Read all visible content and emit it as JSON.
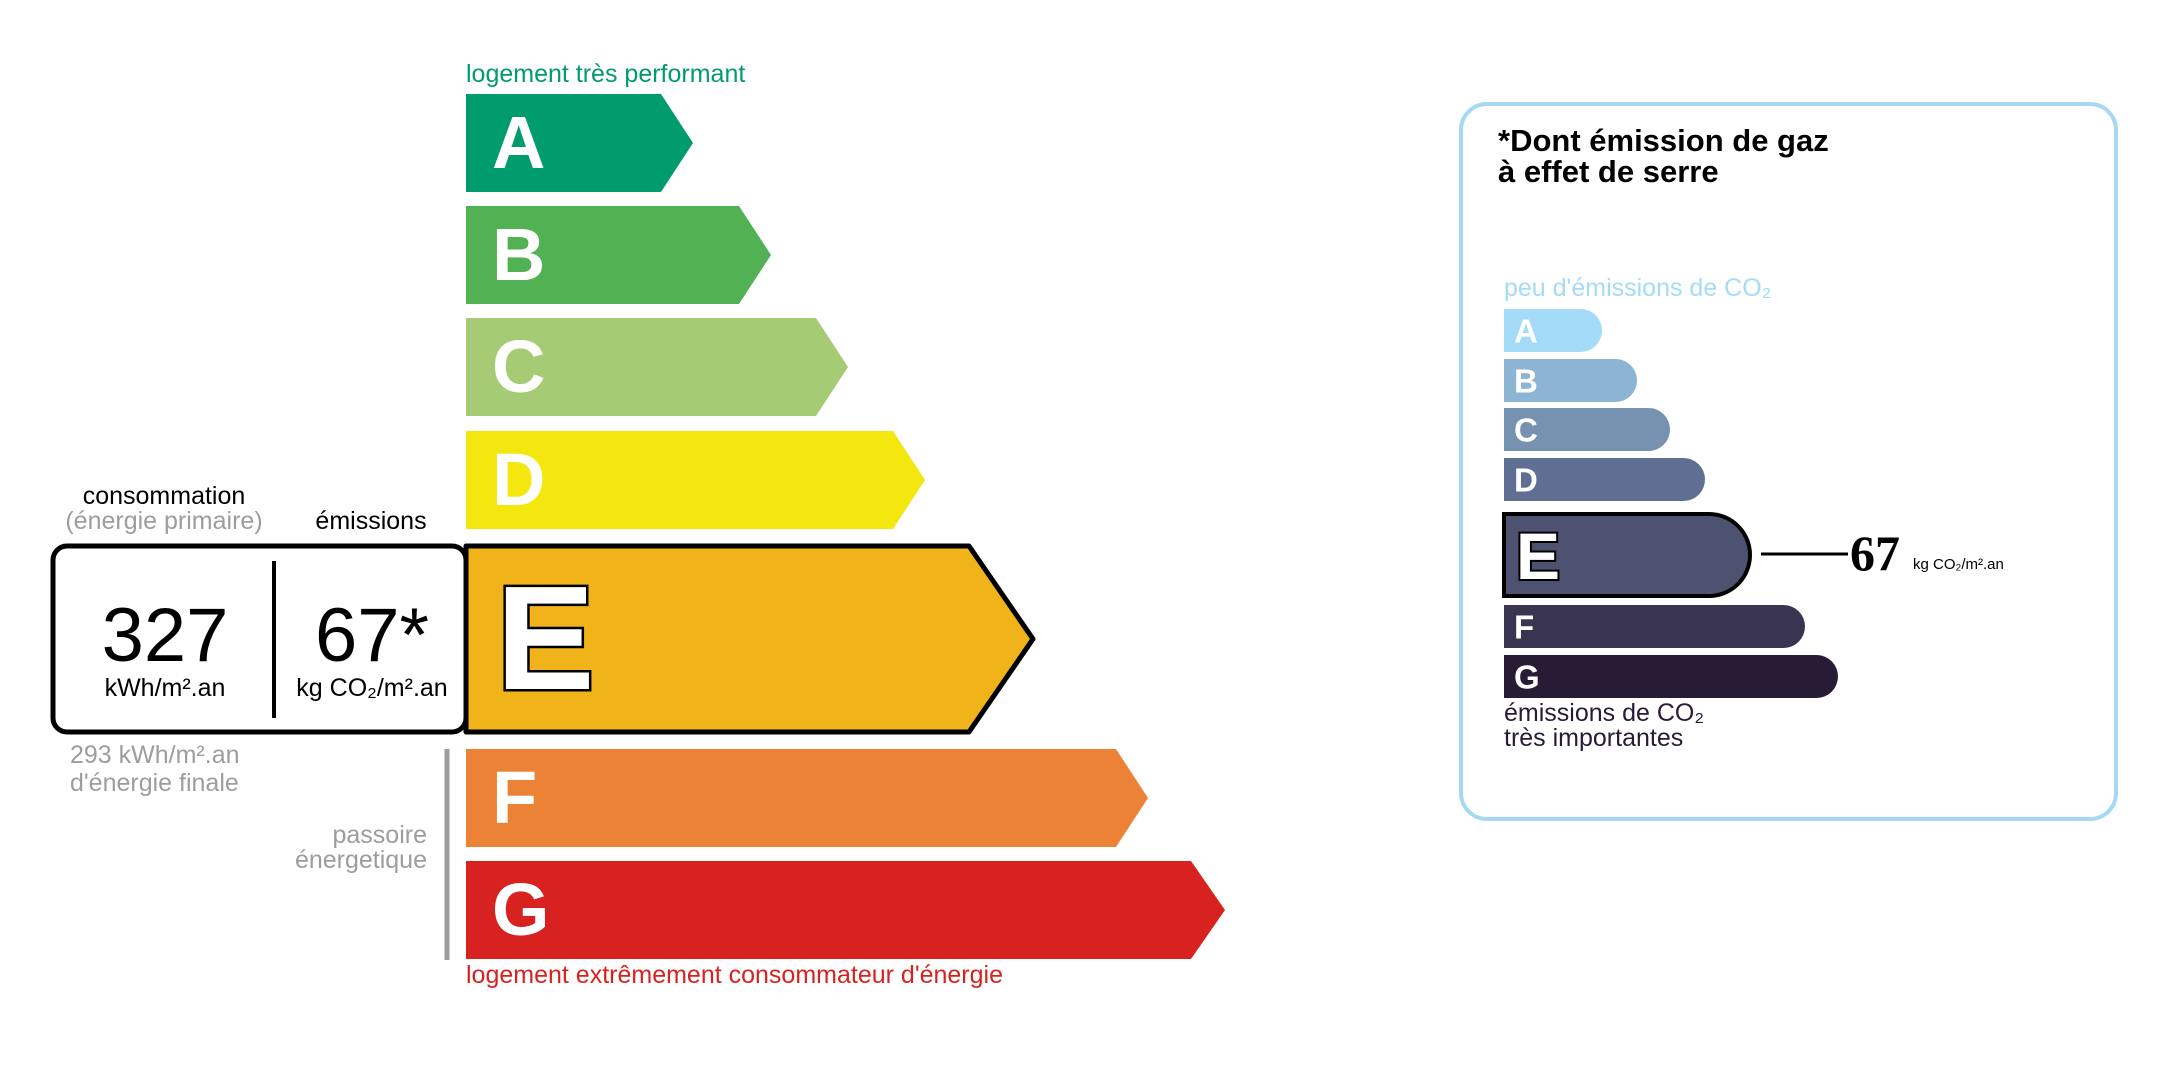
{
  "energy": {
    "top_label": "logement très performant",
    "bottom_label": "logement extrêmement consommateur d'énergie",
    "top_color": "#009c6d",
    "bottom_color": "#d7221f",
    "classes": [
      {
        "letter": "A",
        "color": "#009c6d"
      },
      {
        "letter": "B",
        "color": "#52b153"
      },
      {
        "letter": "C",
        "color": "#a5cc74"
      },
      {
        "letter": "D",
        "color": "#f4e70f"
      },
      {
        "letter": "E",
        "color": "#f0b41a"
      },
      {
        "letter": "F",
        "color": "#ec8235"
      },
      {
        "letter": "G",
        "color": "#d7221f"
      }
    ],
    "current_class": "E",
    "consumption_label": "consommation",
    "consumption_sub": "(énergie primaire)",
    "emissions_label": "émissions",
    "consumption_value": "327",
    "consumption_unit": "kWh/m².an",
    "emissions_value": "67*",
    "emissions_unit": "kg CO₂/m².an",
    "final_energy": "293 kWh/m².an",
    "final_energy_label": "d'énergie finale",
    "passoire_1": "passoire",
    "passoire_2": "énergetique"
  },
  "ges": {
    "title_1": "*Dont émission de gaz",
    "title_2": "à effet de serre",
    "top_label": "peu d'émissions de CO₂",
    "bottom_label_1": "émissions de CO₂",
    "bottom_label_2": "très importantes",
    "border_color": "#a6d8f5",
    "classes": [
      {
        "letter": "A",
        "color": "#a4dbf8"
      },
      {
        "letter": "B",
        "color": "#8cb4d3"
      },
      {
        "letter": "C",
        "color": "#7792b1"
      },
      {
        "letter": "D",
        "color": "#5f6f93"
      },
      {
        "letter": "E",
        "color": "#4d5271"
      },
      {
        "letter": "F",
        "color": "#393551"
      },
      {
        "letter": "G",
        "color": "#281b35"
      }
    ],
    "current_class": "E",
    "value": "67",
    "unit": "kg CO₂/m².an"
  }
}
